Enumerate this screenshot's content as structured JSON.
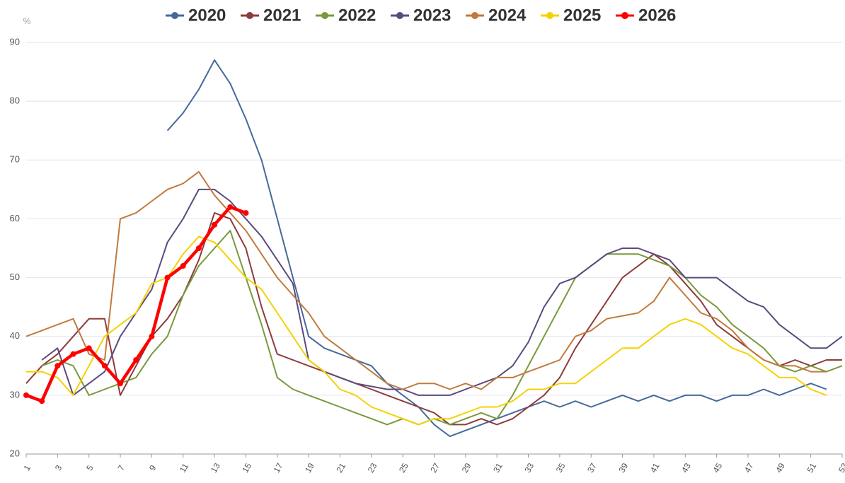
{
  "chart_data": {
    "type": "line",
    "y_label": "%",
    "x": [
      1,
      2,
      3,
      4,
      5,
      6,
      7,
      8,
      9,
      10,
      11,
      12,
      13,
      14,
      15,
      16,
      17,
      18,
      19,
      20,
      21,
      22,
      23,
      24,
      25,
      26,
      27,
      28,
      29,
      30,
      31,
      32,
      33,
      34,
      35,
      36,
      37,
      38,
      39,
      40,
      41,
      42,
      43,
      44,
      45,
      46,
      47,
      48,
      49,
      50,
      51,
      52,
      53
    ],
    "xlim": [
      1,
      53
    ],
    "xticks": [
      1,
      3,
      5,
      7,
      9,
      11,
      13,
      15,
      17,
      19,
      21,
      23,
      25,
      27,
      29,
      31,
      33,
      35,
      37,
      39,
      41,
      43,
      45,
      47,
      49,
      51,
      53
    ],
    "ylim": [
      20,
      90
    ],
    "yticks": [
      20,
      30,
      40,
      50,
      60,
      70,
      80,
      90
    ],
    "grid": true,
    "legend": "top",
    "series": [
      {
        "name": "2020",
        "color": "#46699a",
        "marker": false,
        "values": [
          null,
          null,
          null,
          null,
          null,
          null,
          null,
          null,
          null,
          75,
          78,
          82,
          87,
          83,
          77,
          70,
          60,
          50,
          40,
          38,
          37,
          36,
          35,
          32,
          30,
          28,
          25,
          23,
          24,
          25,
          26,
          27,
          28,
          29,
          28,
          29,
          28,
          29,
          30,
          29,
          30,
          29,
          30,
          30,
          29,
          30,
          30,
          31,
          30,
          31,
          32,
          31,
          null
        ]
      },
      {
        "name": "2021",
        "color": "#8e3b3b",
        "marker": false,
        "values": [
          32,
          35,
          37,
          40,
          43,
          43,
          30,
          35,
          40,
          43,
          47,
          53,
          61,
          60,
          55,
          45,
          37,
          36,
          35,
          34,
          33,
          32,
          31,
          30,
          29,
          28,
          27,
          25,
          25,
          26,
          25,
          26,
          28,
          30,
          33,
          38,
          42,
          46,
          50,
          52,
          54,
          52,
          49,
          46,
          42,
          40,
          38,
          36,
          35,
          36,
          35,
          36,
          36
        ]
      },
      {
        "name": "2022",
        "color": "#789a3c",
        "marker": false,
        "values": [
          null,
          35,
          36,
          35,
          30,
          31,
          32,
          33,
          37,
          40,
          47,
          52,
          55,
          58,
          50,
          42,
          33,
          31,
          30,
          29,
          28,
          27,
          26,
          25,
          26,
          25,
          26,
          25,
          26,
          27,
          26,
          30,
          35,
          40,
          45,
          50,
          52,
          54,
          54,
          54,
          53,
          52,
          50,
          47,
          45,
          42,
          40,
          38,
          35,
          34,
          35,
          34,
          35
        ]
      },
      {
        "name": "2023",
        "color": "#5c4a7d",
        "marker": false,
        "values": [
          null,
          36,
          38,
          30,
          32,
          34,
          40,
          44,
          48,
          56,
          60,
          65,
          65,
          63,
          60,
          57,
          53,
          49,
          36,
          34,
          33,
          32,
          31.5,
          31,
          31,
          30,
          30,
          30,
          31,
          32,
          33,
          35,
          39,
          45,
          49,
          50,
          52,
          54,
          55,
          55,
          54,
          53,
          50,
          50,
          50,
          48,
          46,
          45,
          42,
          40,
          38,
          38,
          40
        ]
      },
      {
        "name": "2024",
        "color": "#c27a3c",
        "marker": false,
        "values": [
          40,
          41,
          42,
          43,
          37,
          36,
          60,
          61,
          63,
          65,
          66,
          68,
          64,
          61,
          58,
          54,
          50,
          47,
          44,
          40,
          38,
          36,
          34,
          32,
          31,
          32,
          32,
          31,
          32,
          31,
          33,
          33,
          34,
          35,
          36,
          40,
          41,
          43,
          43.5,
          44,
          46,
          50,
          47,
          44,
          43,
          41,
          38,
          36,
          35,
          35,
          34,
          34,
          null
        ]
      },
      {
        "name": "2025",
        "color": "#f5d200",
        "marker": false,
        "values": [
          34,
          34,
          33,
          30,
          35,
          40,
          42,
          44,
          49,
          50,
          54,
          57,
          56,
          53,
          50,
          48,
          44,
          40,
          36,
          34,
          31,
          30,
          28,
          27,
          26,
          25,
          26,
          26,
          27,
          28,
          28,
          29,
          31,
          31,
          32,
          32,
          34,
          36,
          38,
          38,
          40,
          42,
          43,
          42,
          40,
          38,
          37,
          35,
          33,
          33,
          31,
          30,
          null
        ]
      },
      {
        "name": "2026",
        "color": "#ff0000",
        "marker": true,
        "values": [
          30,
          29,
          35,
          37,
          38,
          35,
          32,
          36,
          40,
          50,
          52,
          55,
          59,
          62,
          61,
          null,
          null,
          null,
          null,
          null,
          null,
          null,
          null,
          null,
          null,
          null,
          null,
          null,
          null,
          null,
          null,
          null,
          null,
          null,
          null,
          null,
          null,
          null,
          null,
          null,
          null,
          null,
          null,
          null,
          null,
          null,
          null,
          null,
          null,
          null,
          null,
          null,
          null
        ]
      }
    ]
  }
}
